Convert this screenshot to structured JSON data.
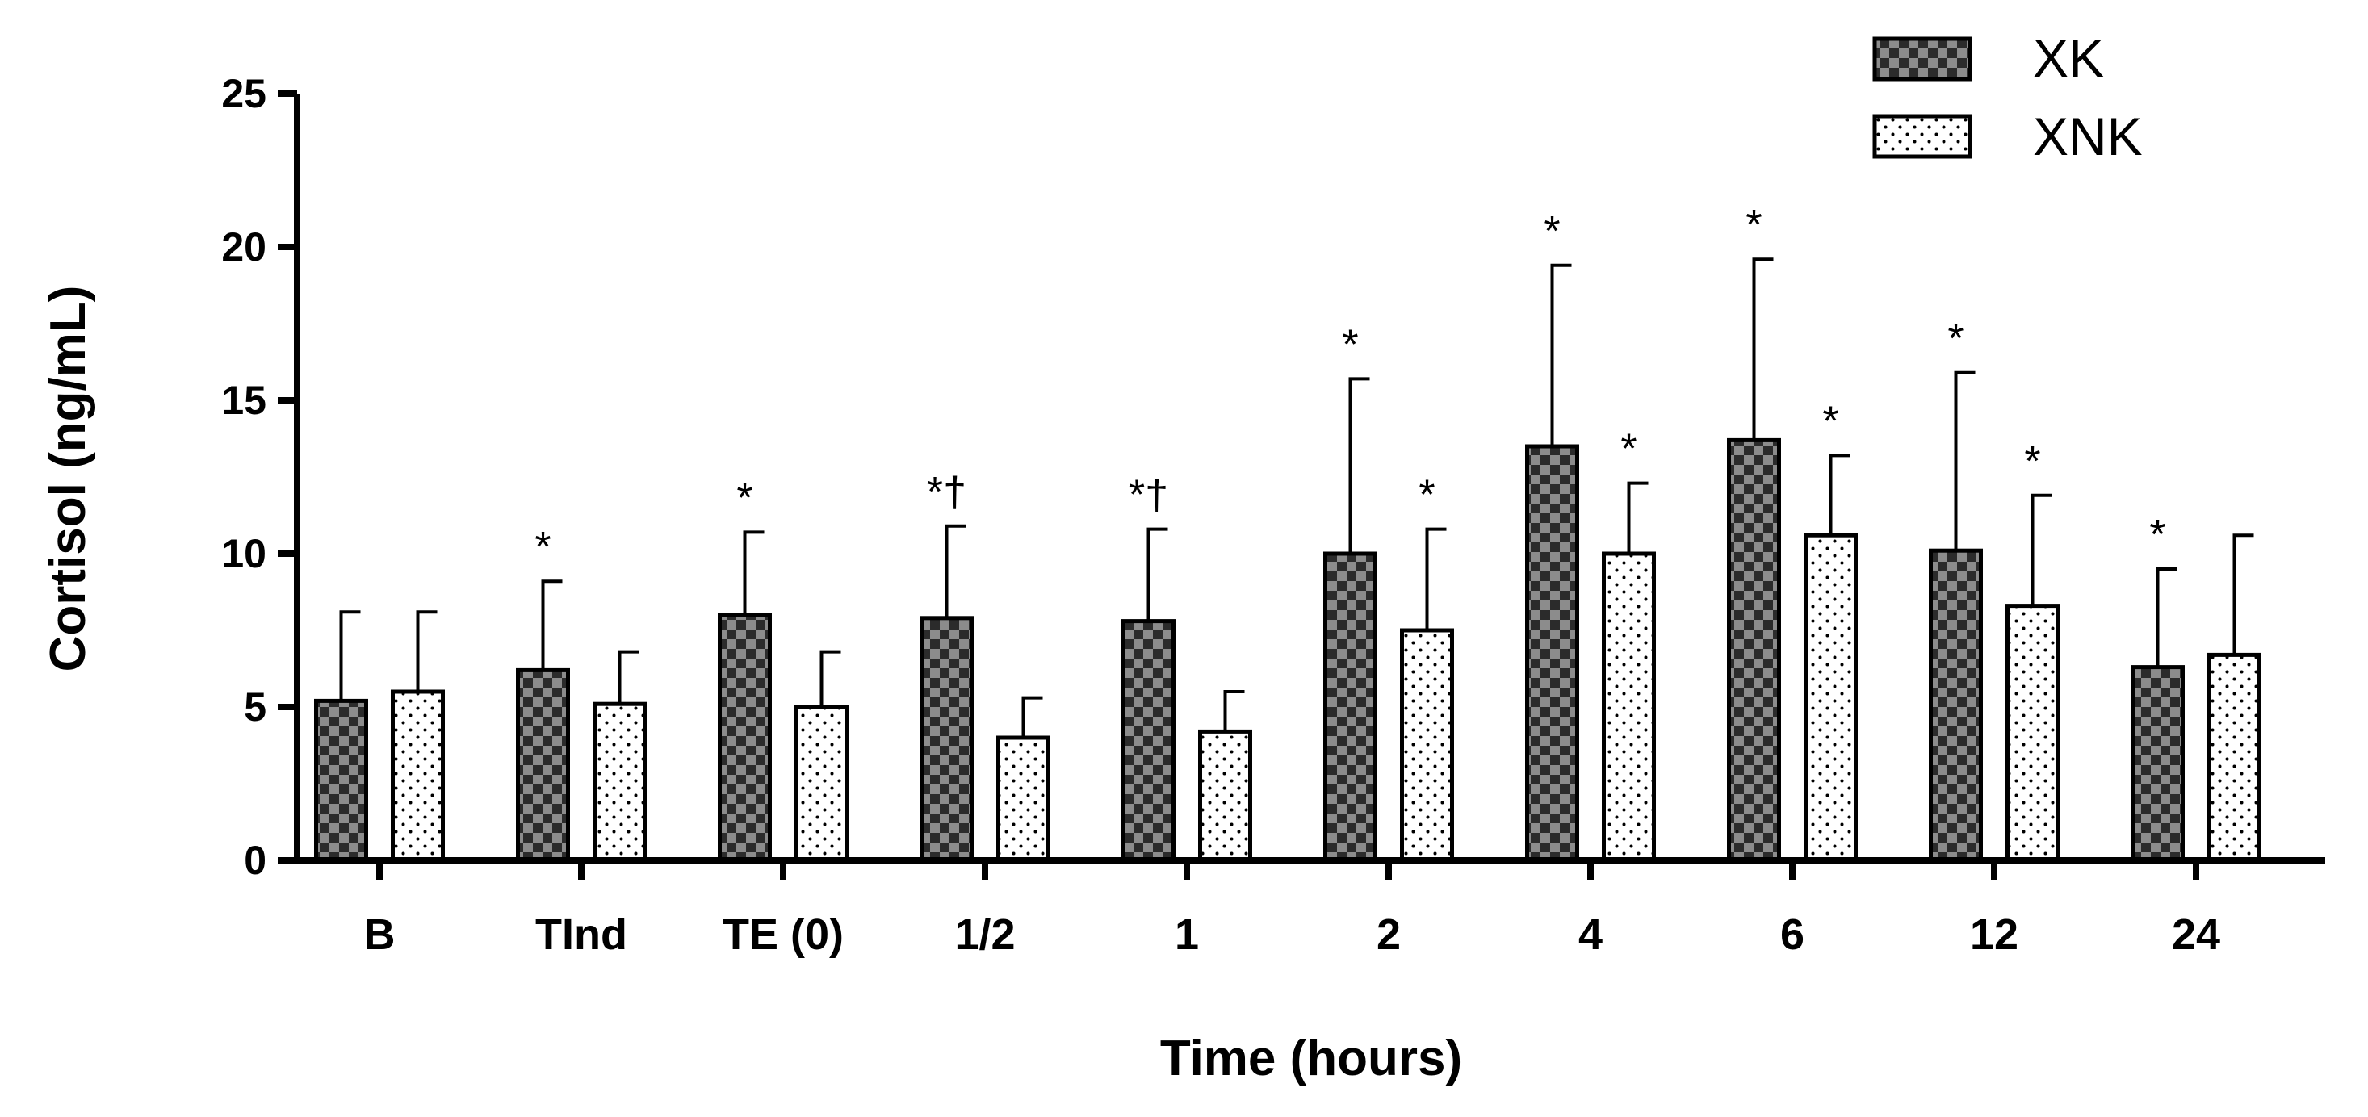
{
  "chart_data": {
    "type": "bar",
    "title": "",
    "xlabel": "Time (hours)",
    "ylabel": "Cortisol (ng/mL)",
    "ylim": [
      0,
      25
    ],
    "yticks": [
      "0",
      "5",
      "10",
      "15",
      "20",
      "25"
    ],
    "categories": [
      "B",
      "TInd",
      "TE (0)",
      "1/2",
      "1",
      "2",
      "4",
      "6",
      "12",
      "24"
    ],
    "series": [
      {
        "name": "XK",
        "pattern": "checkerboard",
        "color_a": "#2b2b2b",
        "color_b": "#8c8c8c",
        "values": [
          5.2,
          6.2,
          8.0,
          7.9,
          7.8,
          10.0,
          13.5,
          13.7,
          10.1,
          6.3
        ],
        "error": [
          2.9,
          2.9,
          2.7,
          3.0,
          3.0,
          5.7,
          5.9,
          5.9,
          5.8,
          3.2
        ],
        "labels": [
          "",
          "*",
          "*",
          "*†",
          "*†",
          "*",
          "*",
          "*",
          "*",
          "*"
        ]
      },
      {
        "name": "XNK",
        "pattern": "dotted",
        "color_a": "#ffffff",
        "color_b": "#000000",
        "values": [
          5.5,
          5.1,
          5.0,
          4.0,
          4.2,
          7.5,
          10.0,
          10.6,
          8.3,
          6.7
        ],
        "error": [
          2.6,
          1.7,
          1.8,
          1.3,
          1.3,
          3.3,
          2.3,
          2.6,
          3.6,
          3.9
        ],
        "labels": [
          "",
          "",
          "",
          "",
          "",
          "*",
          "*",
          "*",
          "*",
          ""
        ]
      }
    ],
    "legend_position": "top-right"
  }
}
